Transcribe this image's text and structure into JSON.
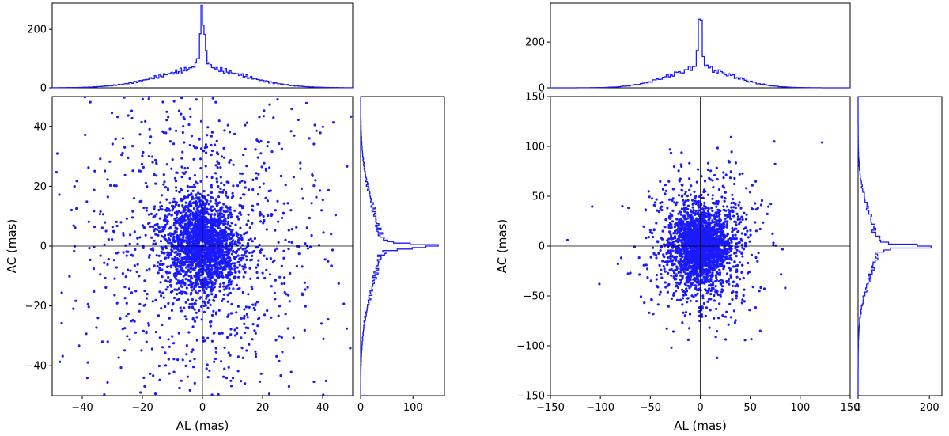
{
  "chart_data": [
    {
      "type": "scatter",
      "title": "",
      "xlabel": "AL (mas)",
      "ylabel": "AC (mas)",
      "xlim": [
        -50,
        50
      ],
      "ylim": [
        -50,
        50
      ],
      "xticks": [
        -40,
        -20,
        0,
        20,
        40
      ],
      "yticks": [
        -40,
        -20,
        0,
        20,
        40
      ],
      "marker_color": "#1a1aff",
      "reference_lines": {
        "x": 0,
        "y": 0
      },
      "scatter_points": 3000,
      "scatter_shape": {
        "core_spread": 6,
        "wide_spread": 22
      },
      "top_histogram": {
        "ylim": [
          0,
          290
        ],
        "yticks": [
          0,
          200
        ],
        "bin_width": 0.5,
        "peak_count": 285,
        "profile": "sharp central peak at AL = 0 with broad low wings"
      },
      "right_histogram": {
        "xlim": [
          0,
          160
        ],
        "xticks": [
          0,
          100
        ],
        "bin_width": 0.5,
        "peak_count": 155,
        "profile": "sharp central peak at AC = 0 with broad low wings"
      }
    },
    {
      "type": "scatter",
      "title": "",
      "xlabel": "AL (mas)",
      "ylabel": "AC (mas)",
      "xlim": [
        -150,
        150
      ],
      "ylim": [
        -150,
        150
      ],
      "xticks": [
        -150,
        -100,
        -50,
        0,
        50,
        100,
        150
      ],
      "yticks": [
        -150,
        -100,
        -50,
        0,
        50,
        100,
        150
      ],
      "marker_color": "#1a1aff",
      "reference_lines": {
        "x": 0,
        "y": 0
      },
      "scatter_points": 2500,
      "scatter_shape": {
        "core_spread": 14,
        "wide_spread": 28
      },
      "outliers": [
        [
          -133,
          6
        ],
        [
          -101,
          -38
        ],
        [
          -78,
          40
        ],
        [
          -70,
          -27
        ],
        [
          74,
          105
        ],
        [
          122,
          104
        ],
        [
          85,
          -42
        ],
        [
          73,
          1
        ],
        [
          60,
          -85
        ],
        [
          47,
          15
        ],
        [
          -50,
          16
        ]
      ],
      "top_histogram": {
        "ylim": [
          0,
          370
        ],
        "yticks": [
          0,
          200
        ],
        "bin_width": 2,
        "peak_count": 360,
        "profile": "narrow central peak at AL = 0"
      },
      "right_histogram": {
        "xlim": [
          0,
          235
        ],
        "xticks": [
          0,
          200
        ],
        "bin_width": 2,
        "peak_count": 225,
        "profile": "narrow central peak at AC = 0"
      }
    }
  ]
}
